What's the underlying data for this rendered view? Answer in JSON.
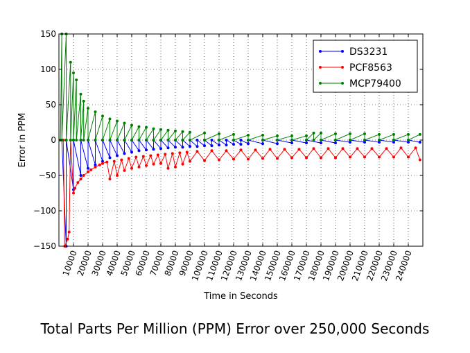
{
  "caption": "Total Parts Per Million (PPM) Error over 250,000 Seconds",
  "chart_data": {
    "type": "line",
    "title": "",
    "xlabel": "Time in Seconds",
    "ylabel": "Error in PPM",
    "xlim": [
      0,
      250000
    ],
    "ylim": [
      -150,
      150
    ],
    "grid": true,
    "legend": "top-right",
    "x_ticks": [
      10000,
      20000,
      30000,
      40000,
      50000,
      60000,
      70000,
      80000,
      90000,
      100000,
      110000,
      120000,
      130000,
      140000,
      150000,
      160000,
      170000,
      180000,
      190000,
      200000,
      210000,
      220000,
      230000,
      240000
    ],
    "x_tick_labels": [
      "10000",
      "20000",
      "30000",
      "40000",
      "50000",
      "60000",
      "70000",
      "80000",
      "90000",
      "100000",
      "110000",
      "120000",
      "130000",
      "140000",
      "150000",
      "160000",
      "170000",
      "180000",
      "190000",
      "200000",
      "210000",
      "220000",
      "230000",
      "240000"
    ],
    "y_ticks": [
      -150,
      -100,
      -50,
      0,
      50,
      100,
      150
    ],
    "y_tick_labels": [
      "−150",
      "−100",
      "−50",
      "0",
      "50",
      "100",
      "150"
    ],
    "series": [
      {
        "name": "DS3231",
        "color": "#0000ff",
        "x": [
          2000,
          5000,
          5000,
          10000,
          10000,
          15000,
          15000,
          20000,
          20000,
          25000,
          25000,
          30000,
          30000,
          35000,
          35000,
          40000,
          40000,
          45000,
          45000,
          50000,
          50000,
          55000,
          55000,
          60000,
          60000,
          65000,
          65000,
          70000,
          70000,
          75000,
          75000,
          80000,
          80000,
          85000,
          85000,
          90000,
          90000,
          95000,
          95000,
          100000,
          100000,
          105000,
          105000,
          110000,
          110000,
          115000,
          115000,
          120000,
          120000,
          125000,
          125000,
          130000,
          130000,
          140000,
          140000,
          150000,
          150000,
          160000,
          160000,
          170000,
          170000,
          180000,
          180000,
          190000,
          190000,
          200000,
          200000,
          210000,
          210000,
          220000,
          220000,
          230000,
          230000,
          240000,
          240000,
          248000
        ],
        "y": [
          0,
          -150,
          0,
          -70,
          0,
          -50,
          0,
          -40,
          0,
          -35,
          0,
          -30,
          0,
          -25,
          0,
          -22,
          0,
          -19,
          0,
          -17,
          0,
          -15,
          0,
          -14,
          0,
          -13,
          0,
          -12,
          0,
          -11,
          0,
          -10,
          0,
          -10,
          0,
          -9,
          0,
          -9,
          0,
          -8,
          0,
          -8,
          0,
          -7,
          0,
          -7,
          0,
          -6,
          0,
          -6,
          0,
          -5,
          0,
          -5,
          0,
          -5,
          0,
          -4,
          0,
          -4,
          0,
          -4,
          0,
          -4,
          0,
          -3,
          0,
          -3,
          0,
          -3,
          0,
          -3,
          0,
          -3,
          0,
          -3
        ]
      },
      {
        "name": "PCF8563",
        "color": "#ff0000",
        "x": [
          3000,
          4000,
          6000,
          7000,
          8000,
          10000,
          11000,
          13000,
          15000,
          17000,
          20000,
          22000,
          25000,
          28000,
          30000,
          33000,
          35000,
          38000,
          40000,
          43000,
          45000,
          48000,
          50000,
          53000,
          55000,
          58000,
          60000,
          63000,
          65000,
          68000,
          70000,
          73000,
          75000,
          78000,
          80000,
          83000,
          85000,
          88000,
          90000,
          95000,
          100000,
          105000,
          110000,
          115000,
          120000,
          125000,
          130000,
          135000,
          140000,
          145000,
          150000,
          155000,
          160000,
          165000,
          170000,
          175000,
          180000,
          185000,
          190000,
          195000,
          200000,
          205000,
          210000,
          215000,
          220000,
          225000,
          230000,
          235000,
          240000,
          245000,
          248000
        ],
        "y": [
          0,
          -150,
          -140,
          -130,
          0,
          -75,
          -68,
          -60,
          -55,
          -50,
          -45,
          -42,
          -38,
          -35,
          -33,
          -31,
          -55,
          -30,
          -50,
          -28,
          -43,
          -26,
          -40,
          -24,
          -38,
          -23,
          -36,
          -22,
          -34,
          -21,
          -33,
          -20,
          -40,
          -19,
          -38,
          -18,
          -34,
          -17,
          -30,
          -16,
          -29,
          -15,
          -28,
          -15,
          -27,
          -14,
          -27,
          -14,
          -26,
          -13,
          -26,
          -13,
          -25,
          -13,
          -25,
          -12,
          -25,
          -12,
          -25,
          -12,
          -24,
          -12,
          -24,
          -12,
          -24,
          -12,
          -24,
          -11,
          -24,
          -11,
          -28
        ]
      },
      {
        "name": "MCP79400",
        "color": "#008000",
        "x": [
          1000,
          2000,
          2000,
          5000,
          5000,
          8000,
          8000,
          10000,
          10000,
          12000,
          12000,
          15000,
          15000,
          17000,
          17000,
          20000,
          20000,
          25000,
          25000,
          30000,
          30000,
          35000,
          35000,
          40000,
          40000,
          45000,
          45000,
          50000,
          50000,
          55000,
          55000,
          60000,
          60000,
          65000,
          65000,
          70000,
          70000,
          75000,
          75000,
          80000,
          80000,
          85000,
          85000,
          90000,
          90000,
          100000,
          100000,
          110000,
          110000,
          120000,
          120000,
          130000,
          130000,
          140000,
          140000,
          150000,
          150000,
          160000,
          160000,
          170000,
          170000,
          175000,
          175000,
          180000,
          180000,
          190000,
          190000,
          200000,
          200000,
          210000,
          210000,
          220000,
          220000,
          230000,
          230000,
          240000,
          240000,
          248000
        ],
        "y": [
          0,
          150,
          0,
          150,
          0,
          110,
          0,
          95,
          0,
          85,
          0,
          65,
          0,
          55,
          0,
          45,
          0,
          40,
          0,
          34,
          0,
          30,
          0,
          27,
          0,
          24,
          0,
          21,
          0,
          19,
          0,
          18,
          0,
          16,
          0,
          15,
          0,
          14,
          0,
          13,
          0,
          12,
          0,
          11,
          0,
          10,
          0,
          9,
          0,
          8,
          0,
          7,
          0,
          7,
          0,
          6,
          0,
          6,
          0,
          6,
          0,
          10,
          0,
          10,
          0,
          9,
          0,
          9,
          0,
          9,
          0,
          8,
          0,
          8,
          0,
          8,
          0,
          8
        ]
      }
    ]
  }
}
